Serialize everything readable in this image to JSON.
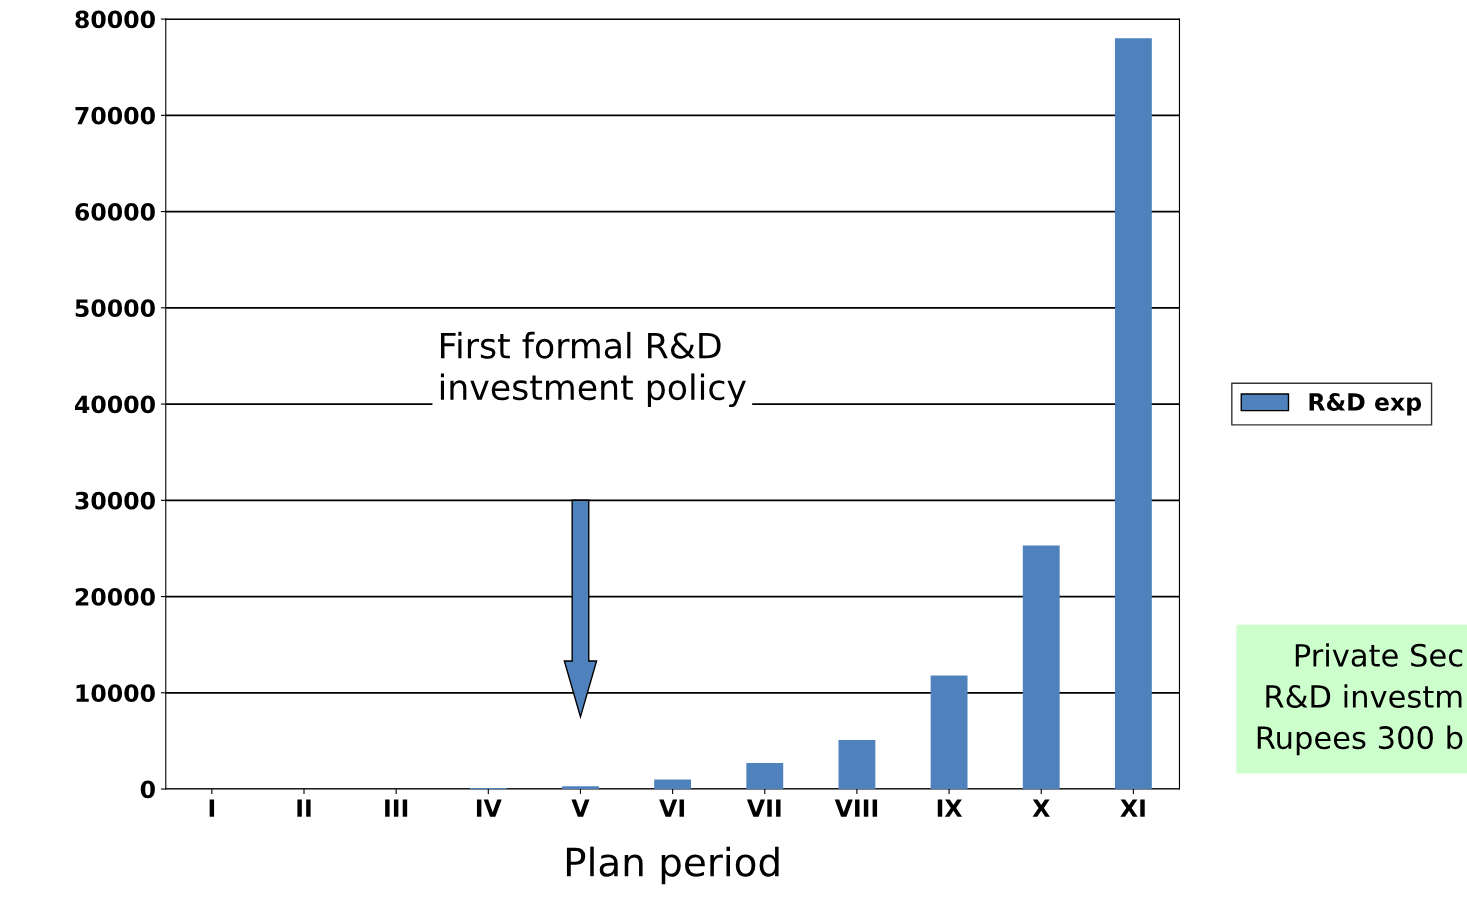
{
  "chart_data": {
    "type": "bar",
    "xlabel": "Plan period",
    "categories": [
      "I",
      "II",
      "III",
      "IV",
      "V",
      "VI",
      "VII",
      "VIII",
      "IX",
      "X",
      "XI"
    ],
    "series": [
      {
        "name": "R&D exp",
        "color": "#4f81bd",
        "values": [
          0,
          0,
          0,
          100,
          300,
          1000,
          2700,
          5100,
          11800,
          25300,
          78000
        ]
      }
    ],
    "ylim": [
      0,
      80000
    ],
    "yticks": [
      0,
      10000,
      20000,
      30000,
      40000,
      50000,
      60000,
      70000,
      80000
    ],
    "grid": "y",
    "legend": "right",
    "annotations": [
      "First formal R&D\ninvestment policy",
      "Private Sec\nR&D investm\nRupees 300 b"
    ]
  }
}
